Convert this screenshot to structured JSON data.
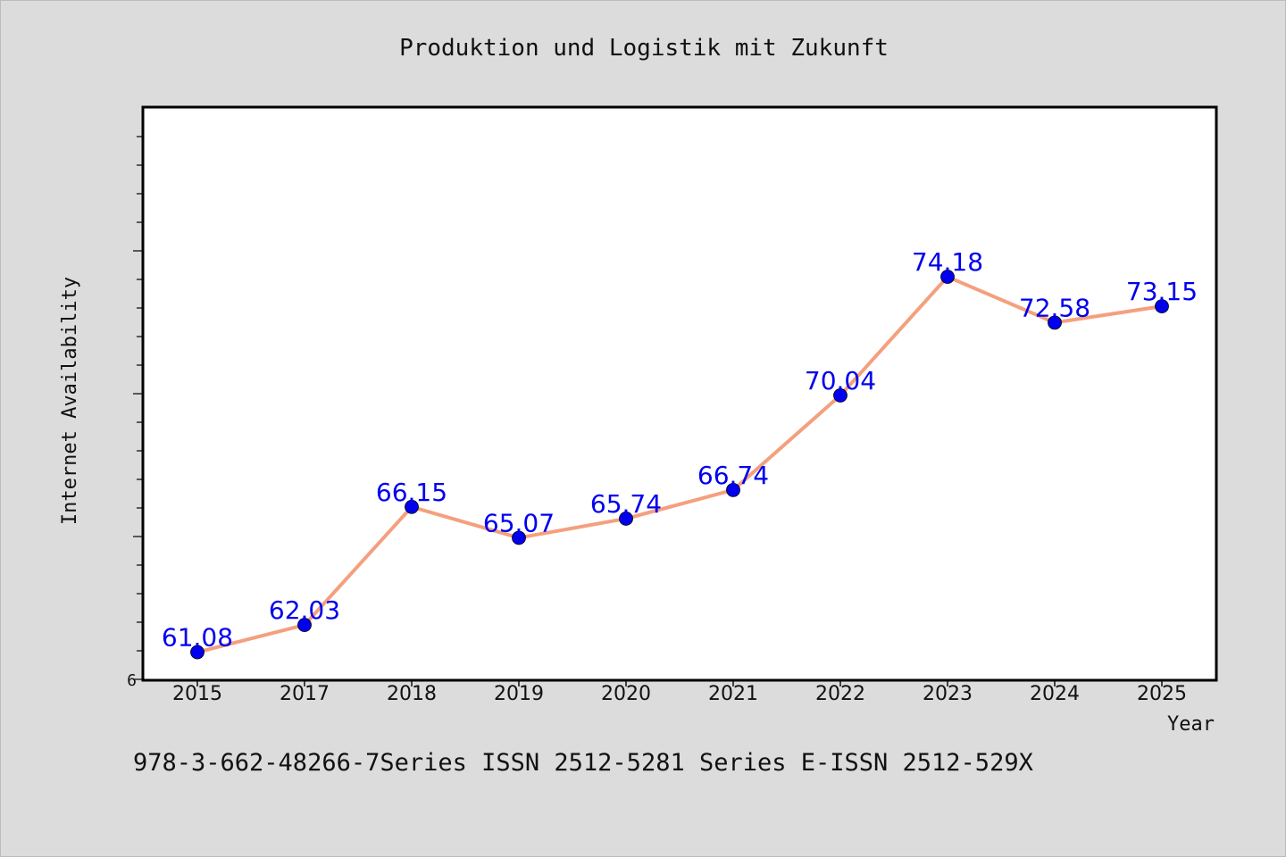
{
  "chart_data": {
    "type": "line",
    "title": "Produktion und Logistik mit Zukunft",
    "xlabel": "Year",
    "ylabel": "Internet Availability",
    "categories": [
      "2015",
      "2017",
      "2018",
      "2019",
      "2020",
      "2021",
      "2022",
      "2023",
      "2024",
      "2025"
    ],
    "series": [
      {
        "values": [
          61.08,
          62.03,
          66.15,
          65.07,
          65.74,
          66.74,
          70.04,
          74.18,
          72.58,
          73.15
        ],
        "labels": [
          "61.08",
          "62.03",
          "66.15",
          "65.07",
          "65.74",
          "66.74",
          "70.04",
          "74.18",
          "72.58",
          "73.15"
        ]
      }
    ],
    "y_tick_labels": [
      "6"
    ],
    "ylim": [
      60.1,
      80.1
    ],
    "grid": false,
    "colors": {
      "line": "#f4a07e",
      "marker": "#0000ee",
      "label": "#0000ee",
      "plot_background": "#ffffff",
      "page_background": "#dcdcdc"
    }
  },
  "footer": {
    "text": "978-3-662-48266-7Series ISSN 2512-5281 Series E-ISSN 2512-529X"
  }
}
